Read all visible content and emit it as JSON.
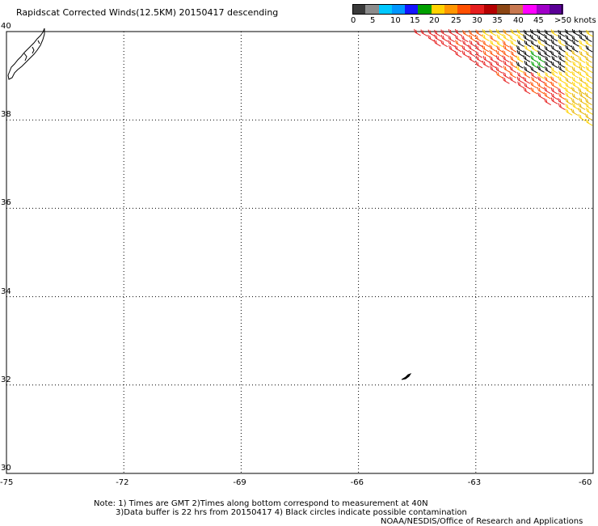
{
  "title": "Rapidscat Corrected Winds(12.5KM) 20150417 descending",
  "colorbar": {
    "labels": [
      "0",
      "5",
      "10",
      "15",
      "20",
      "25",
      "30",
      "35",
      "40",
      "45",
      ">50 knots"
    ],
    "colors": [
      "#3a3a3a",
      "#8c8c8c",
      "#00c8ff",
      "#0096ff",
      "#1414ff",
      "#00a000",
      "#ffd200",
      "#ff9600",
      "#ff5000",
      "#e61e1e",
      "#b40000",
      "#8b4513",
      "#c87850",
      "#ff00ff",
      "#a000c8",
      "#5a0096"
    ]
  },
  "map": {
    "lon_ticks": [
      "-75",
      "-72",
      "-69",
      "-66",
      "-63",
      "-60"
    ],
    "lat_ticks": [
      "40",
      "38",
      "36",
      "34",
      "32",
      "30"
    ],
    "lon_range": [
      -75,
      -60
    ],
    "lat_range": [
      30,
      40
    ],
    "grid": "dotted"
  },
  "notes": {
    "line1": "Note: 1) Times are GMT 2)Times along bottom correspond to measurement at 40N",
    "line2": "3)Data buffer is 22 hrs from 20150417 4) Black circles indicate possible contamination",
    "credit": "NOAA/NESDIS/Office of Research and Applications"
  }
}
